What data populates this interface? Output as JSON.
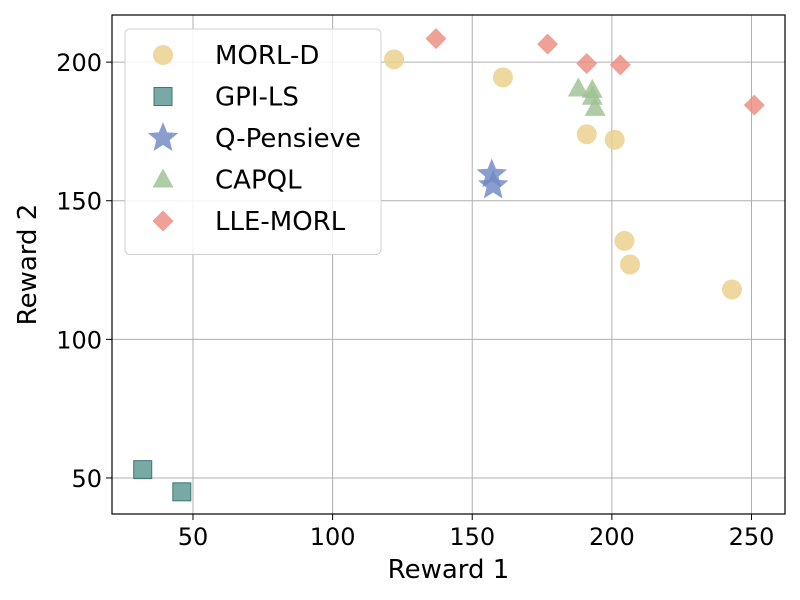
{
  "chart_data": {
    "type": "scatter",
    "title": "",
    "xlabel": "Reward 1",
    "ylabel": "Reward 2",
    "xlim": [
      21,
      262
    ],
    "ylim": [
      37,
      217
    ],
    "xticks": [
      50,
      100,
      150,
      200,
      250
    ],
    "yticks": [
      50,
      100,
      150,
      200
    ],
    "grid": true,
    "legend_position": "top-left",
    "series": [
      {
        "name": "MORL-D",
        "marker": "circle",
        "color": "#ecd08a",
        "points": [
          {
            "x": 122,
            "y": 201
          },
          {
            "x": 161,
            "y": 194.5
          },
          {
            "x": 191,
            "y": 174
          },
          {
            "x": 201,
            "y": 172
          },
          {
            "x": 204.5,
            "y": 135.5
          },
          {
            "x": 206.5,
            "y": 127
          },
          {
            "x": 243,
            "y": 118
          }
        ]
      },
      {
        "name": "GPI-LS",
        "marker": "square",
        "color": "#5c9690",
        "points": [
          {
            "x": 32,
            "y": 53
          },
          {
            "x": 46,
            "y": 45
          }
        ]
      },
      {
        "name": "Q-Pensieve",
        "marker": "star",
        "color": "#6f89c4",
        "points": [
          {
            "x": 157,
            "y": 159.5
          },
          {
            "x": 157.5,
            "y": 155.5
          }
        ]
      },
      {
        "name": "CAPQL",
        "marker": "triangle",
        "color": "#9fc193",
        "points": [
          {
            "x": 188,
            "y": 190.5
          },
          {
            "x": 193,
            "y": 190
          },
          {
            "x": 193,
            "y": 187.5
          },
          {
            "x": 194,
            "y": 183.5
          }
        ]
      },
      {
        "name": "LLE-MORL",
        "marker": "diamond",
        "color": "#ea8c7c",
        "points": [
          {
            "x": 137,
            "y": 208.5
          },
          {
            "x": 177,
            "y": 206.5
          },
          {
            "x": 191,
            "y": 199.5
          },
          {
            "x": 203,
            "y": 199
          },
          {
            "x": 251,
            "y": 184.5
          }
        ]
      }
    ]
  }
}
